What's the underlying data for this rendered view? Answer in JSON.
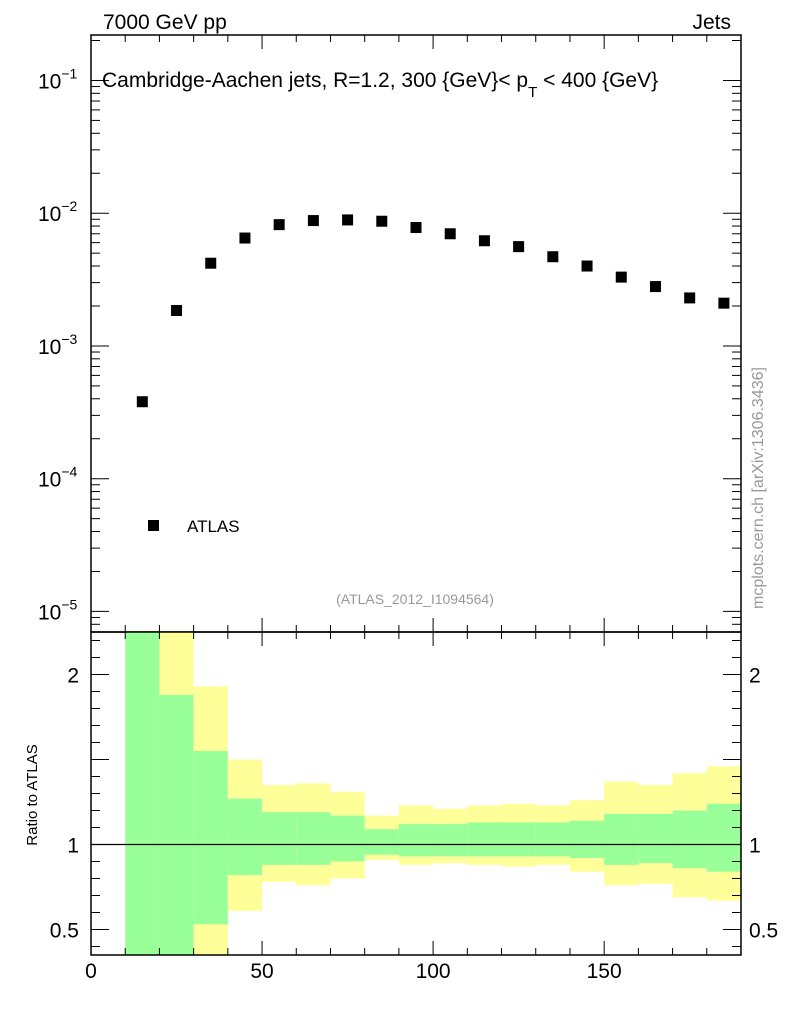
{
  "header": {
    "left": "7000 GeV pp",
    "right": "Jets"
  },
  "side_label": "mcplots.cern.ch [arXiv:1306.3436]",
  "reference": "(ATLAS_2012_I1094564)",
  "chart_data": [
    {
      "type": "scatter",
      "panel": "main",
      "title": "Cambridge-Aachen jets, R=1.2, 300 {GeV}< p_T < 400 {GeV}",
      "title_parts": {
        "main": "Cambridge-Aachen jets, R=1.2, 300 {GeV}< p",
        "sub": "T",
        "tail": " < 400 {GeV}"
      },
      "yscale": "log",
      "xlim": [
        0,
        190
      ],
      "ylim": [
        7e-06,
        0.22
      ],
      "ytick_labels": [
        {
          "base": "10",
          "exp": "−5",
          "value": 1e-05
        },
        {
          "base": "10",
          "exp": "−4",
          "value": 0.0001
        },
        {
          "base": "10",
          "exp": "−3",
          "value": 0.001
        },
        {
          "base": "10",
          "exp": "−2",
          "value": 0.01
        },
        {
          "base": "10",
          "exp": "−1",
          "value": 0.1
        }
      ],
      "legend": {
        "label": "ATLAS",
        "position": "bottom-left"
      },
      "series": [
        {
          "name": "ATLAS",
          "marker": "square",
          "x": [
            15,
            25,
            35,
            45,
            55,
            65,
            75,
            85,
            95,
            105,
            115,
            125,
            135,
            145,
            155,
            165,
            175,
            185
          ],
          "y": [
            0.00038,
            0.00185,
            0.0042,
            0.0065,
            0.0082,
            0.0088,
            0.0089,
            0.0087,
            0.0078,
            0.007,
            0.0062,
            0.0056,
            0.0047,
            0.004,
            0.0033,
            0.0028,
            0.0023,
            0.0021
          ]
        }
      ]
    },
    {
      "type": "area",
      "panel": "ratio",
      "ylabel": "Ratio to ATLAS",
      "xlim": [
        0,
        190
      ],
      "ylim": [
        0.35,
        2.25
      ],
      "xticks": [
        0,
        50,
        100,
        150
      ],
      "xtick_labels": [
        "0",
        "50",
        "100",
        "150"
      ],
      "yticks": [
        0.5,
        1,
        2
      ],
      "ytick_labels": [
        "0.5",
        "1",
        "2"
      ],
      "reference_line": 1,
      "colors": {
        "inner": "#99ff99",
        "outer": "#ffff99",
        "line": "#000000"
      },
      "bins": [
        {
          "lo": 10,
          "hi": 20,
          "inner": [
            0.3,
            2.3
          ],
          "outer": [
            0.3,
            2.3
          ]
        },
        {
          "lo": 20,
          "hi": 30,
          "inner": [
            0.3,
            1.88
          ],
          "outer": [
            0.3,
            2.3
          ]
        },
        {
          "lo": 30,
          "hi": 40,
          "inner": [
            0.53,
            1.55
          ],
          "outer": [
            0.3,
            1.93
          ]
        },
        {
          "lo": 40,
          "hi": 50,
          "inner": [
            0.82,
            1.27
          ],
          "outer": [
            0.61,
            1.5
          ]
        },
        {
          "lo": 50,
          "hi": 60,
          "inner": [
            0.88,
            1.19
          ],
          "outer": [
            0.78,
            1.35
          ]
        },
        {
          "lo": 60,
          "hi": 70,
          "inner": [
            0.88,
            1.19
          ],
          "outer": [
            0.76,
            1.36
          ]
        },
        {
          "lo": 70,
          "hi": 80,
          "inner": [
            0.9,
            1.17
          ],
          "outer": [
            0.8,
            1.31
          ]
        },
        {
          "lo": 80,
          "hi": 90,
          "inner": [
            0.94,
            1.09
          ],
          "outer": [
            0.91,
            1.17
          ]
        },
        {
          "lo": 90,
          "hi": 100,
          "inner": [
            0.93,
            1.12
          ],
          "outer": [
            0.88,
            1.23
          ]
        },
        {
          "lo": 100,
          "hi": 110,
          "inner": [
            0.93,
            1.12
          ],
          "outer": [
            0.89,
            1.21
          ]
        },
        {
          "lo": 110,
          "hi": 120,
          "inner": [
            0.93,
            1.13
          ],
          "outer": [
            0.88,
            1.23
          ]
        },
        {
          "lo": 120,
          "hi": 130,
          "inner": [
            0.93,
            1.13
          ],
          "outer": [
            0.87,
            1.24
          ]
        },
        {
          "lo": 130,
          "hi": 140,
          "inner": [
            0.93,
            1.13
          ],
          "outer": [
            0.88,
            1.23
          ]
        },
        {
          "lo": 140,
          "hi": 150,
          "inner": [
            0.92,
            1.14
          ],
          "outer": [
            0.84,
            1.26
          ]
        },
        {
          "lo": 150,
          "hi": 160,
          "inner": [
            0.88,
            1.18
          ],
          "outer": [
            0.76,
            1.37
          ]
        },
        {
          "lo": 160,
          "hi": 170,
          "inner": [
            0.89,
            1.18
          ],
          "outer": [
            0.77,
            1.35
          ]
        },
        {
          "lo": 170,
          "hi": 180,
          "inner": [
            0.86,
            1.2
          ],
          "outer": [
            0.69,
            1.42
          ]
        },
        {
          "lo": 180,
          "hi": 190,
          "inner": [
            0.84,
            1.24
          ],
          "outer": [
            0.67,
            1.46
          ]
        }
      ]
    }
  ]
}
